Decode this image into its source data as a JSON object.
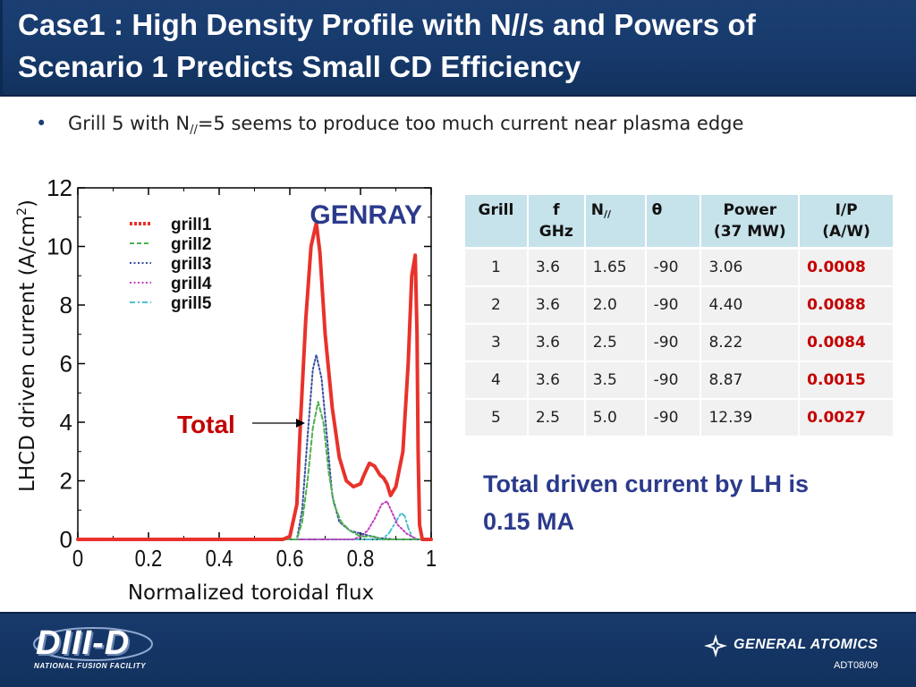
{
  "slide": {
    "title_line1": "Case1 : High Density Profile with N//s and Powers of",
    "title_line2": "Scenario 1 Predicts Small CD Efficiency",
    "bullet": {
      "prefix": "Grill 5 with N",
      "sub": "//",
      "suffix": "=5 seems to produce too much current near plasma edge"
    },
    "summary_line1": "Total driven current by LH is",
    "summary_line2": "0.15 MA",
    "footer": {
      "left_logo_big": "DIII-D",
      "left_logo_small": "NATIONAL FUSION FACILITY",
      "right_logo": "GENERAL ATOMICS",
      "code": "ADT08/09"
    }
  },
  "table": {
    "headers": [
      {
        "line1": "Grill",
        "line2": ""
      },
      {
        "line1": "f",
        "line2": "GHz"
      },
      {
        "line1": "N",
        "sub": "//",
        "line2": ""
      },
      {
        "line1": "θ",
        "line2": ""
      },
      {
        "line1": "Power",
        "line2": "(37 MW)"
      },
      {
        "line1": "I/P",
        "line2": "(A/W)"
      }
    ],
    "rows": [
      {
        "grill": "1",
        "f": "3.6",
        "n": "1.65",
        "theta": "-90",
        "power": "3.06",
        "ip": "0.0008"
      },
      {
        "grill": "2",
        "f": "3.6",
        "n": "2.0",
        "theta": "-90",
        "power": "4.40",
        "ip": "0.0088"
      },
      {
        "grill": "3",
        "f": "3.6",
        "n": "2.5",
        "theta": "-90",
        "power": "8.22",
        "ip": "0.0084"
      },
      {
        "grill": "4",
        "f": "3.6",
        "n": "3.5",
        "theta": "-90",
        "power": "8.87",
        "ip": "0.0015"
      },
      {
        "grill": "5",
        "f": "2.5",
        "n": "5.0",
        "theta": "-90",
        "power": "12.39",
        "ip": "0.0027"
      }
    ]
  },
  "chart_data": {
    "type": "line",
    "title": "",
    "annotation": "GENRAY",
    "total_label": "Total",
    "xlabel": "Normalized toroidal flux",
    "ylabel_main": "LHCD driven current (A/cm",
    "ylabel_sup": "2",
    "ylabel_end": ")",
    "xlim": [
      0,
      1
    ],
    "ylim": [
      0,
      12
    ],
    "xticks": [
      "0",
      "0.2",
      "0.4",
      "0.6",
      "0.8",
      "1"
    ],
    "yticks": [
      "0",
      "2",
      "4",
      "6",
      "8",
      "10",
      "12"
    ],
    "grid": false,
    "legend_position": "top-left",
    "series": [
      {
        "name": "grill1",
        "color": "#e8322b",
        "style": "dotted-thick",
        "role": "total",
        "points": [
          [
            0,
            0
          ],
          [
            0.58,
            0
          ],
          [
            0.6,
            0.1
          ],
          [
            0.62,
            1.2
          ],
          [
            0.63,
            4
          ],
          [
            0.645,
            7.5
          ],
          [
            0.66,
            10
          ],
          [
            0.675,
            10.8
          ],
          [
            0.685,
            9.8
          ],
          [
            0.7,
            7
          ],
          [
            0.72,
            4.5
          ],
          [
            0.74,
            2.8
          ],
          [
            0.76,
            2
          ],
          [
            0.78,
            1.8
          ],
          [
            0.8,
            1.9
          ],
          [
            0.81,
            2.2
          ],
          [
            0.825,
            2.6
          ],
          [
            0.84,
            2.5
          ],
          [
            0.855,
            2.2
          ],
          [
            0.865,
            2.1
          ],
          [
            0.875,
            1.9
          ],
          [
            0.885,
            1.5
          ],
          [
            0.9,
            1.8
          ],
          [
            0.92,
            3
          ],
          [
            0.935,
            6
          ],
          [
            0.945,
            9
          ],
          [
            0.955,
            9.7
          ],
          [
            0.96,
            7
          ],
          [
            0.963,
            3
          ],
          [
            0.967,
            0.5
          ],
          [
            0.975,
            0
          ],
          [
            1,
            0
          ]
        ]
      },
      {
        "name": "grill2",
        "color": "#4fb14f",
        "style": "dashed",
        "points": [
          [
            0,
            0
          ],
          [
            0.62,
            0
          ],
          [
            0.635,
            0.6
          ],
          [
            0.65,
            2
          ],
          [
            0.665,
            3.8
          ],
          [
            0.68,
            4.7
          ],
          [
            0.695,
            4
          ],
          [
            0.71,
            2.3
          ],
          [
            0.725,
            1.2
          ],
          [
            0.745,
            0.6
          ],
          [
            0.77,
            0.3
          ],
          [
            0.8,
            0.1
          ],
          [
            0.84,
            0.1
          ],
          [
            0.86,
            0
          ],
          [
            1,
            0
          ]
        ]
      },
      {
        "name": "grill3",
        "color": "#3a4f9e",
        "style": "dotted",
        "points": [
          [
            0,
            0
          ],
          [
            0.62,
            0
          ],
          [
            0.635,
            1
          ],
          [
            0.65,
            3.5
          ],
          [
            0.665,
            5.8
          ],
          [
            0.675,
            6.3
          ],
          [
            0.69,
            5.5
          ],
          [
            0.705,
            3.5
          ],
          [
            0.72,
            1.5
          ],
          [
            0.74,
            0.6
          ],
          [
            0.77,
            0.3
          ],
          [
            0.8,
            0.2
          ],
          [
            0.85,
            0.05
          ],
          [
            0.9,
            0
          ],
          [
            1,
            0
          ]
        ]
      },
      {
        "name": "grill4",
        "color": "#c040c0",
        "style": "dotted",
        "points": [
          [
            0,
            0
          ],
          [
            0.78,
            0
          ],
          [
            0.8,
            0.1
          ],
          [
            0.82,
            0.3
          ],
          [
            0.84,
            0.7
          ],
          [
            0.86,
            1.2
          ],
          [
            0.875,
            1.3
          ],
          [
            0.89,
            0.9
          ],
          [
            0.905,
            0.5
          ],
          [
            0.93,
            0.2
          ],
          [
            0.96,
            0
          ],
          [
            1,
            0
          ]
        ]
      },
      {
        "name": "grill5",
        "color": "#4ac0d0",
        "style": "dash-dot",
        "points": [
          [
            0,
            0
          ],
          [
            0.86,
            0
          ],
          [
            0.88,
            0.2
          ],
          [
            0.9,
            0.6
          ],
          [
            0.915,
            0.9
          ],
          [
            0.925,
            0.8
          ],
          [
            0.935,
            0.4
          ],
          [
            0.945,
            0.1
          ],
          [
            0.96,
            0
          ],
          [
            1,
            0
          ]
        ]
      }
    ]
  }
}
